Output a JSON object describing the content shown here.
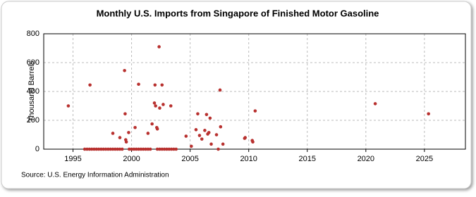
{
  "chart_data": {
    "type": "scatter",
    "title": "Monthly U.S. Imports from Singapore of Finished Motor Gasoline",
    "y_label": "Thousand Barrels",
    "source": "Source: U.S. Energy Information Administration",
    "color": "#b8312f",
    "grid": true,
    "xlim": [
      1992.5,
      2028.5
    ],
    "xticks": [
      1995,
      2000,
      2005,
      2010,
      2015,
      2020,
      2025
    ],
    "ylim": [
      0,
      800
    ],
    "yticks": [
      0,
      200,
      400,
      600,
      800
    ],
    "x": [
      1994.6,
      1996.45,
      1998.4,
      1999.0,
      1999.4,
      1999.45,
      1999.5,
      1999.55,
      1999.75,
      2000.3,
      2000.6,
      2001.4,
      2001.75,
      2001.95,
      2002.0,
      2002.05,
      2002.15,
      2002.2,
      2002.35,
      2002.4,
      2002.6,
      2002.7,
      2003.35,
      2004.65,
      2005.1,
      2005.5,
      2005.65,
      2005.8,
      2006.0,
      2006.25,
      2006.4,
      2006.5,
      2006.6,
      2006.7,
      2006.8,
      2007.25,
      2007.4,
      2007.55,
      2007.6,
      2007.8,
      2009.65,
      2009.7,
      2010.3,
      2010.35,
      2010.55,
      2020.8,
      2025.35,
      1996,
      1996.2,
      1996.4,
      1996.6,
      1996.8,
      1997,
      1997.2,
      1997.4,
      1997.6,
      1997.8,
      1998,
      1998.2,
      1998.4,
      1998.6,
      1998.8,
      1999,
      1999.2,
      1999.8,
      2000,
      2000.2,
      2000.4,
      2000.6,
      2000.8,
      2001,
      2001.2,
      2001.4,
      2001.6,
      2002.2,
      2002.4,
      2002.6,
      2002.8,
      2003,
      2003.2,
      2003.4,
      2003.6,
      2003.8
    ],
    "values": [
      300,
      445,
      110,
      80,
      545,
      245,
      65,
      50,
      115,
      150,
      450,
      110,
      175,
      320,
      445,
      300,
      150,
      140,
      710,
      285,
      445,
      310,
      300,
      90,
      20,
      135,
      245,
      95,
      70,
      130,
      240,
      105,
      115,
      215,
      35,
      100,
      0,
      410,
      155,
      35,
      75,
      80,
      60,
      50,
      265,
      315,
      245,
      0,
      0,
      0,
      0,
      0,
      0,
      0,
      0,
      0,
      0,
      0,
      0,
      0,
      0,
      0,
      0,
      0,
      0,
      0,
      0,
      0,
      0,
      0,
      0,
      0,
      0,
      0,
      0,
      0,
      0,
      0,
      0,
      0,
      0,
      0,
      0
    ]
  }
}
